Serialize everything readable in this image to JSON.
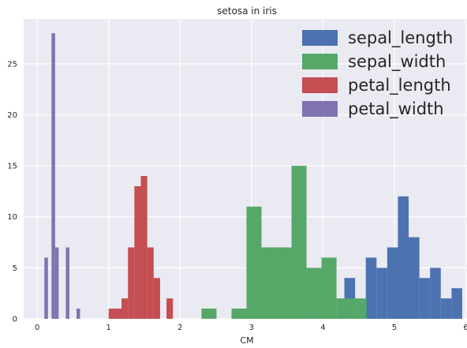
{
  "chart_data": {
    "type": "histogram",
    "title": "setosa in iris",
    "xlabel": "CM",
    "ylabel": "",
    "xlim": [
      -0.19,
      6.05
    ],
    "ylim": [
      0,
      29.4
    ],
    "x_ticks": [
      0,
      1,
      2,
      3,
      4,
      5,
      6
    ],
    "y_ticks": [
      0,
      5,
      10,
      15,
      20,
      25
    ],
    "grid": true,
    "legend_position": "top-right",
    "series": [
      {
        "name": "sepal_length",
        "color": "#4c72b0",
        "bin_start": 4.3,
        "bin_width": 0.15,
        "counts": [
          4,
          1,
          6,
          5,
          7,
          12,
          8,
          4,
          5,
          2,
          3
        ]
      },
      {
        "name": "sepal_width",
        "color": "#55a868",
        "bin_start": 2.3,
        "bin_width": 0.21,
        "counts": [
          1,
          0,
          1,
          11,
          7,
          7,
          15,
          5,
          6,
          2,
          2
        ]
      },
      {
        "name": "petal_length",
        "color": "#c44e52",
        "bin_start": 1.0,
        "bin_width": 0.09,
        "counts": [
          1,
          1,
          2,
          7,
          13,
          14,
          7,
          4,
          0,
          2
        ]
      },
      {
        "name": "petal_width",
        "color": "#8172b2",
        "bin_start": 0.1,
        "bin_width": 0.05,
        "counts": [
          6,
          0,
          28,
          7,
          0,
          0,
          7,
          0,
          0,
          1
        ]
      }
    ]
  }
}
